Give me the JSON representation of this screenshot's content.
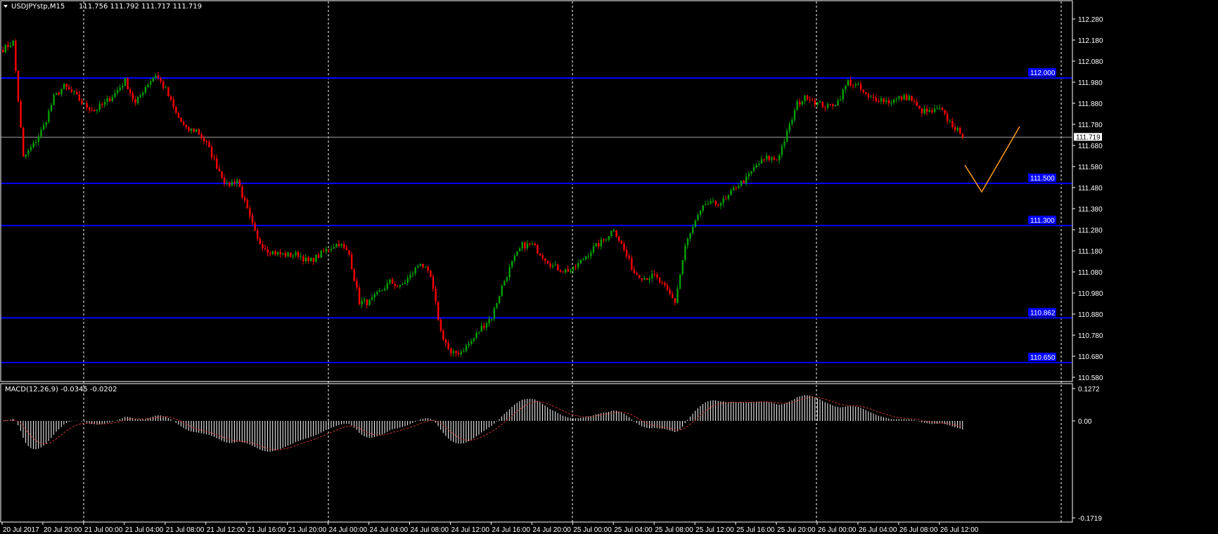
{
  "header": {
    "symbol_label": "USDJPYstp,M15",
    "ohlc_label": "111.756 111.792 111.717 111.719",
    "menu_icon": "triangle-down-icon"
  },
  "colors": {
    "background": "#000000",
    "bull": "#00a000",
    "bear": "#ff0000",
    "level_line": "#0000ff",
    "bid_line": "#a0a0a0",
    "drawing": "#ff9a1a",
    "macd_hist": "#ffffff",
    "macd_signal": "#c83232"
  },
  "chart_data": {
    "type": "candlestick",
    "symbol": "USDJPYstp",
    "timeframe": "M15",
    "ylim": [
      110.58,
      112.28
    ],
    "y_ticks": [
      "112.280",
      "112.180",
      "112.080",
      "111.980",
      "111.880",
      "111.780",
      "111.680",
      "111.580",
      "111.480",
      "111.380",
      "111.280",
      "111.180",
      "111.080",
      "110.980",
      "110.880",
      "110.780",
      "110.680",
      "110.580"
    ],
    "x_ticks": [
      "20 Jul 2017",
      "20 Jul 20:00",
      "21 Jul 00:00",
      "21 Jul 04:00",
      "21 Jul 08:00",
      "21 Jul 12:00",
      "21 Jul 16:00",
      "21 Jul 20:00",
      "24 Jul 00:00",
      "24 Jul 04:00",
      "24 Jul 08:00",
      "24 Jul 12:00",
      "24 Jul 16:00",
      "24 Jul 20:00",
      "25 Jul 00:00",
      "25 Jul 04:00",
      "25 Jul 08:00",
      "25 Jul 12:00",
      "25 Jul 16:00",
      "25 Jul 20:00",
      "26 Jul 00:00",
      "26 Jul 04:00",
      "26 Jul 08:00",
      "26 Jul 12:00"
    ],
    "start_time": "20 Jul 2017 16:00",
    "hourly_price_path": [
      112.137,
      112.17,
      111.62,
      111.683,
      111.77,
      111.907,
      111.96,
      111.923,
      111.87,
      111.847,
      111.88,
      111.927,
      111.987,
      111.877,
      111.96,
      112.017,
      111.943,
      111.83,
      111.753,
      111.753,
      111.687,
      111.583,
      111.49,
      111.517,
      111.37,
      111.23,
      111.183,
      111.167,
      111.16,
      111.163,
      111.127,
      111.157,
      111.193,
      111.217,
      111.163,
      110.937,
      110.937,
      110.983,
      111.033,
      111.007,
      111.06,
      111.127,
      111.053,
      110.797,
      110.687,
      110.703,
      110.75,
      110.817,
      110.867,
      111.01,
      111.123,
      111.207,
      111.207,
      111.157,
      111.107,
      111.087,
      111.09,
      111.143,
      111.193,
      111.23,
      111.287,
      111.183,
      111.077,
      111.053,
      111.06,
      111.003,
      110.937,
      111.203,
      111.317,
      111.403,
      111.403,
      111.42,
      111.487,
      111.52,
      111.587,
      111.62,
      111.613,
      111.737,
      111.877,
      111.913,
      111.88,
      111.863,
      111.89,
      111.983,
      111.957,
      111.903,
      111.903,
      111.887,
      111.903,
      111.91,
      111.847,
      111.837,
      111.85,
      111.79,
      111.737
    ],
    "last_price": "111.719",
    "levels": [
      {
        "price": 112.0,
        "label": "112.000"
      },
      {
        "price": 111.5,
        "label": "111.500"
      },
      {
        "price": 111.3,
        "label": "111.300"
      },
      {
        "price": 110.862,
        "label": "110.862"
      },
      {
        "price": 110.65,
        "label": "110.650"
      }
    ],
    "indicator": {
      "name": "MACD(12,26,9) -0.0345 -0.0202",
      "fast": 12,
      "slow": 26,
      "signal": 9,
      "y_ticks": [
        "0.1272",
        "0.00",
        "-0.1719"
      ],
      "ylim": [
        -0.1719,
        0.1272
      ]
    }
  }
}
